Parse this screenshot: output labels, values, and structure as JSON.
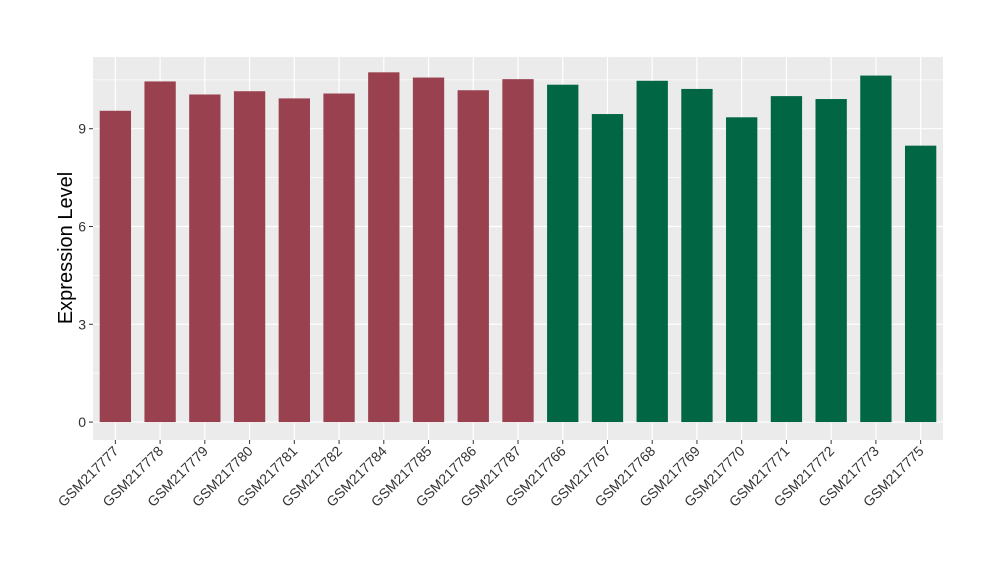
{
  "chart_data": {
    "type": "bar",
    "ylabel": "Expression Level",
    "xlabel": "",
    "ylim": [
      -0.55,
      11.2
    ],
    "yticks": [
      0,
      3,
      6,
      9
    ],
    "grid": true,
    "colors": {
      "group1": "#99414f",
      "group2": "#006644",
      "panel": "#ebebeb",
      "grid": "#ffffff"
    },
    "categories": [
      "GSM217777",
      "GSM217778",
      "GSM217779",
      "GSM217780",
      "GSM217781",
      "GSM217782",
      "GSM217784",
      "GSM217785",
      "GSM217786",
      "GSM217787",
      "GSM217766",
      "GSM217767",
      "GSM217768",
      "GSM217769",
      "GSM217770",
      "GSM217771",
      "GSM217772",
      "GSM217773",
      "GSM217775"
    ],
    "values": [
      9.55,
      10.45,
      10.05,
      10.15,
      9.93,
      10.08,
      10.73,
      10.57,
      10.18,
      10.52,
      10.35,
      9.45,
      10.47,
      10.22,
      9.35,
      10.0,
      9.91,
      10.63,
      8.48
    ],
    "groups": [
      1,
      1,
      1,
      1,
      1,
      1,
      1,
      1,
      1,
      1,
      2,
      2,
      2,
      2,
      2,
      2,
      2,
      2,
      2
    ]
  }
}
